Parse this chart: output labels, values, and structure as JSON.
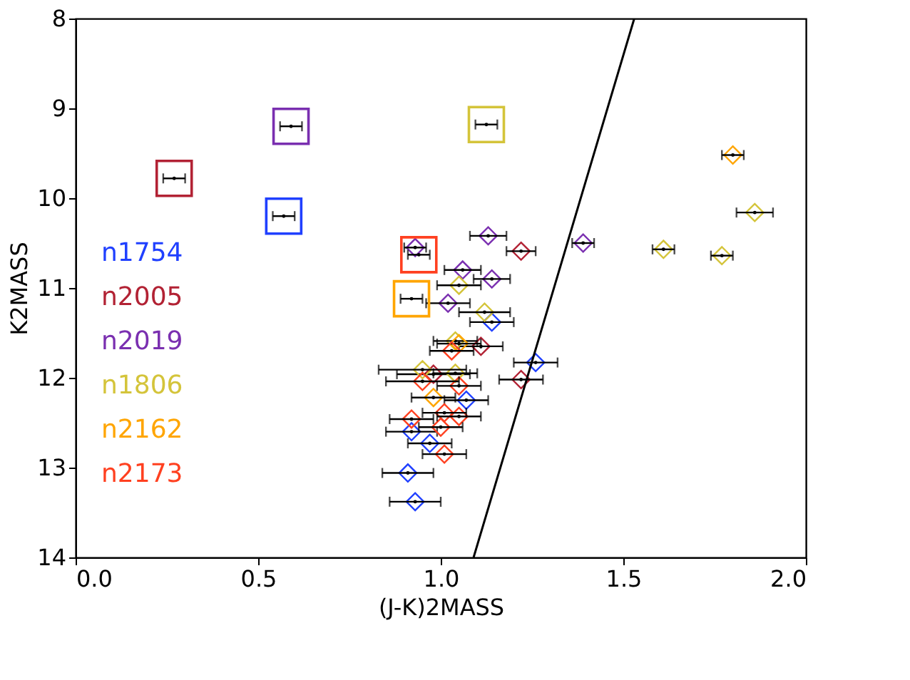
{
  "chart_data": {
    "type": "scatter",
    "xlabel": "(J-K)2MASS",
    "ylabel": "K2MASS",
    "xlim": [
      0,
      2
    ],
    "xticks": [
      {
        "value": 0,
        "label": "0.0"
      },
      {
        "value": 0.5,
        "label": "0.5"
      },
      {
        "value": 1,
        "label": "1.0"
      },
      {
        "value": 1.5,
        "label": "1.5"
      },
      {
        "value": 2,
        "label": "2.0"
      }
    ],
    "ylim": [
      14,
      8
    ],
    "yticks": [
      8,
      9,
      10,
      11,
      12,
      13,
      14
    ],
    "grid": false,
    "legend": "bottom left",
    "series": [
      {
        "name": "n1754",
        "color": "#2040ff",
        "marker": "diamond",
        "x": [
          1.14,
          1.26,
          1.07,
          0.92,
          0.97,
          0.91,
          0.93
        ],
        "values": [
          11.38,
          11.83,
          12.25,
          12.6,
          12.73,
          13.06,
          13.38
        ],
        "xerrors": [
          0.06,
          0.06,
          0.06,
          0.07,
          0.06,
          0.07,
          0.07
        ]
      },
      {
        "color": "#2040ff",
        "marker": "square",
        "x": [
          0.57
        ],
        "values": [
          10.2
        ],
        "xerrors": [
          0.03
        ]
      },
      {
        "name": "n2005",
        "color": "#b22234",
        "marker": "diamond",
        "x": [
          1.22,
          1.11,
          1.22,
          0.98
        ],
        "values": [
          10.59,
          11.65,
          12.02,
          11.96
        ],
        "xerrors": [
          0.04,
          0.06,
          0.06,
          0.1
        ]
      },
      {
        "color": "#b22234",
        "marker": "square",
        "x": [
          0.27
        ],
        "values": [
          9.78
        ],
        "xerrors": [
          0.03
        ]
      },
      {
        "name": "n2019",
        "color": "#7a2fb0",
        "marker": "diamond",
        "x": [
          1.13,
          1.39,
          0.93,
          1.06,
          1.14,
          1.02
        ],
        "values": [
          10.42,
          10.5,
          10.55,
          10.8,
          10.9,
          11.17
        ],
        "xerrors": [
          0.05,
          0.03,
          0.03,
          0.05,
          0.05,
          0.06
        ]
      },
      {
        "color": "#7a2fb0",
        "marker": "square",
        "x": [
          0.59
        ],
        "values": [
          9.2
        ],
        "xerrors": [
          0.03
        ]
      },
      {
        "name": "n1806",
        "color": "#d4c43a",
        "marker": "diamond",
        "x": [
          1.86,
          1.61,
          1.77,
          1.05,
          1.12,
          1.04,
          0.95,
          1.04
        ],
        "values": [
          10.16,
          10.57,
          10.64,
          10.97,
          11.27,
          11.59,
          11.91,
          11.95
        ],
        "xerrors": [
          0.05,
          0.03,
          0.03,
          0.06,
          0.07,
          0.06,
          0.12,
          0.06
        ]
      },
      {
        "color": "#d4c43a",
        "marker": "square",
        "x": [
          1.125
        ],
        "values": [
          9.18
        ],
        "xerrors": [
          0.03
        ]
      },
      {
        "name": "n2162",
        "color": "#ffa500",
        "marker": "diamond",
        "x": [
          1.8,
          1.05,
          0.98
        ],
        "values": [
          9.52,
          11.62,
          12.22
        ],
        "xerrors": [
          0.03,
          0.06,
          0.06
        ]
      },
      {
        "color": "#ffa500",
        "marker": "square",
        "x": [
          0.92
        ],
        "values": [
          11.12
        ],
        "xerrors": [
          0.03
        ]
      },
      {
        "name": "n2173",
        "color": "#ff4020",
        "marker": "diamond",
        "x": [
          1.03,
          0.95,
          1.05,
          1.01,
          1.05,
          0.92,
          1.0,
          1.01
        ],
        "values": [
          11.7,
          12.04,
          12.09,
          12.39,
          12.43,
          12.46,
          12.55,
          12.85
        ],
        "xerrors": [
          0.06,
          0.1,
          0.06,
          0.06,
          0.06,
          0.06,
          0.06,
          0.06
        ]
      },
      {
        "color": "#ff4020",
        "marker": "square",
        "x": [
          0.94
        ],
        "values": [
          10.63
        ],
        "xerrors": [
          0.03
        ]
      },
      {
        "type": "line",
        "color": "#000000",
        "x": [
          1.09,
          1.53
        ],
        "values": [
          14,
          8
        ]
      }
    ]
  }
}
